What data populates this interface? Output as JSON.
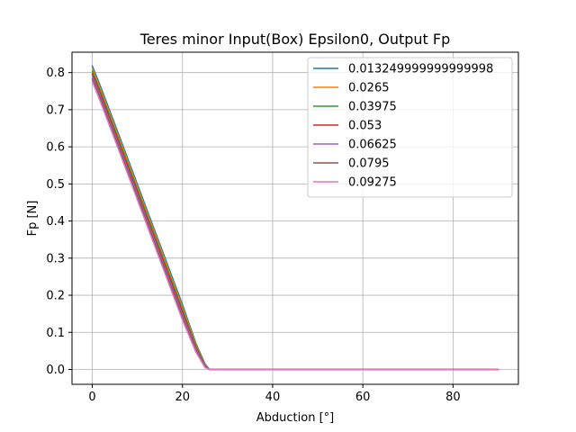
{
  "chart_data": {
    "type": "line",
    "title": "Teres minor Input(Box) Epsilon0, Output Fp",
    "xlabel": "Abduction [°]",
    "ylabel": "Fp [N]",
    "xlim": [
      -4.5,
      94.5
    ],
    "ylim": [
      -0.04,
      0.855
    ],
    "xticks": [
      0,
      20,
      40,
      60,
      80
    ],
    "xtick_labels": [
      "0",
      "20",
      "40",
      "60",
      "80"
    ],
    "yticks": [
      0.0,
      0.1,
      0.2,
      0.3,
      0.4,
      0.5,
      0.6,
      0.7,
      0.8
    ],
    "ytick_labels": [
      "0.0",
      "0.1",
      "0.2",
      "0.3",
      "0.4",
      "0.5",
      "0.6",
      "0.7",
      "0.8"
    ],
    "grid": true,
    "legend_position": "top-right",
    "series": [
      {
        "name": "0.013249999999999998",
        "color": "#1f77b4",
        "x": [
          0,
          1,
          2,
          5,
          10,
          15,
          20,
          23,
          25,
          26,
          30,
          40,
          60,
          80,
          90
        ],
        "y": [
          0.818,
          0.788,
          0.757,
          0.661,
          0.499,
          0.337,
          0.175,
          0.07,
          0.015,
          0.0,
          0.0,
          0.0,
          0.0,
          0.0,
          0.0
        ]
      },
      {
        "name": "0.0265",
        "color": "#ff7f0e",
        "x": [
          0,
          1,
          2,
          5,
          10,
          15,
          20,
          23,
          25,
          26,
          30,
          40,
          60,
          80,
          90
        ],
        "y": [
          0.811,
          0.781,
          0.75,
          0.654,
          0.492,
          0.33,
          0.168,
          0.066,
          0.013,
          0.0,
          0.0,
          0.0,
          0.0,
          0.0,
          0.0
        ]
      },
      {
        "name": "0.03975",
        "color": "#2ca02c",
        "x": [
          0,
          1,
          2,
          5,
          10,
          15,
          20,
          23,
          25,
          26,
          30,
          40,
          60,
          80,
          90
        ],
        "y": [
          0.804,
          0.774,
          0.743,
          0.647,
          0.485,
          0.323,
          0.161,
          0.062,
          0.011,
          0.0,
          0.0,
          0.0,
          0.0,
          0.0,
          0.0
        ]
      },
      {
        "name": "0.053",
        "color": "#d62728",
        "x": [
          0,
          1,
          2,
          5,
          10,
          15,
          20,
          23,
          25,
          26,
          30,
          40,
          60,
          80,
          90
        ],
        "y": [
          0.797,
          0.767,
          0.736,
          0.64,
          0.478,
          0.316,
          0.154,
          0.058,
          0.009,
          0.0,
          0.0,
          0.0,
          0.0,
          0.0,
          0.0
        ]
      },
      {
        "name": "0.06625",
        "color": "#9467bd",
        "x": [
          0,
          1,
          2,
          5,
          10,
          15,
          20,
          23,
          25,
          26,
          30,
          40,
          60,
          80,
          90
        ],
        "y": [
          0.79,
          0.76,
          0.729,
          0.633,
          0.471,
          0.309,
          0.147,
          0.054,
          0.008,
          0.0,
          0.0,
          0.0,
          0.0,
          0.0,
          0.0
        ]
      },
      {
        "name": "0.0795",
        "color": "#8c564b",
        "x": [
          0,
          1,
          2,
          5,
          10,
          15,
          20,
          23,
          25,
          26,
          30,
          40,
          60,
          80,
          90
        ],
        "y": [
          0.783,
          0.753,
          0.722,
          0.626,
          0.464,
          0.302,
          0.14,
          0.05,
          0.006,
          0.0,
          0.0,
          0.0,
          0.0,
          0.0,
          0.0
        ]
      },
      {
        "name": "0.09275",
        "color": "#e377c2",
        "x": [
          0,
          1,
          2,
          5,
          10,
          15,
          20,
          23,
          25,
          26,
          30,
          40,
          60,
          80,
          90
        ],
        "y": [
          0.776,
          0.746,
          0.715,
          0.619,
          0.457,
          0.295,
          0.133,
          0.046,
          0.005,
          0.0,
          0.0,
          0.0,
          0.0,
          0.0,
          0.0
        ]
      }
    ]
  }
}
